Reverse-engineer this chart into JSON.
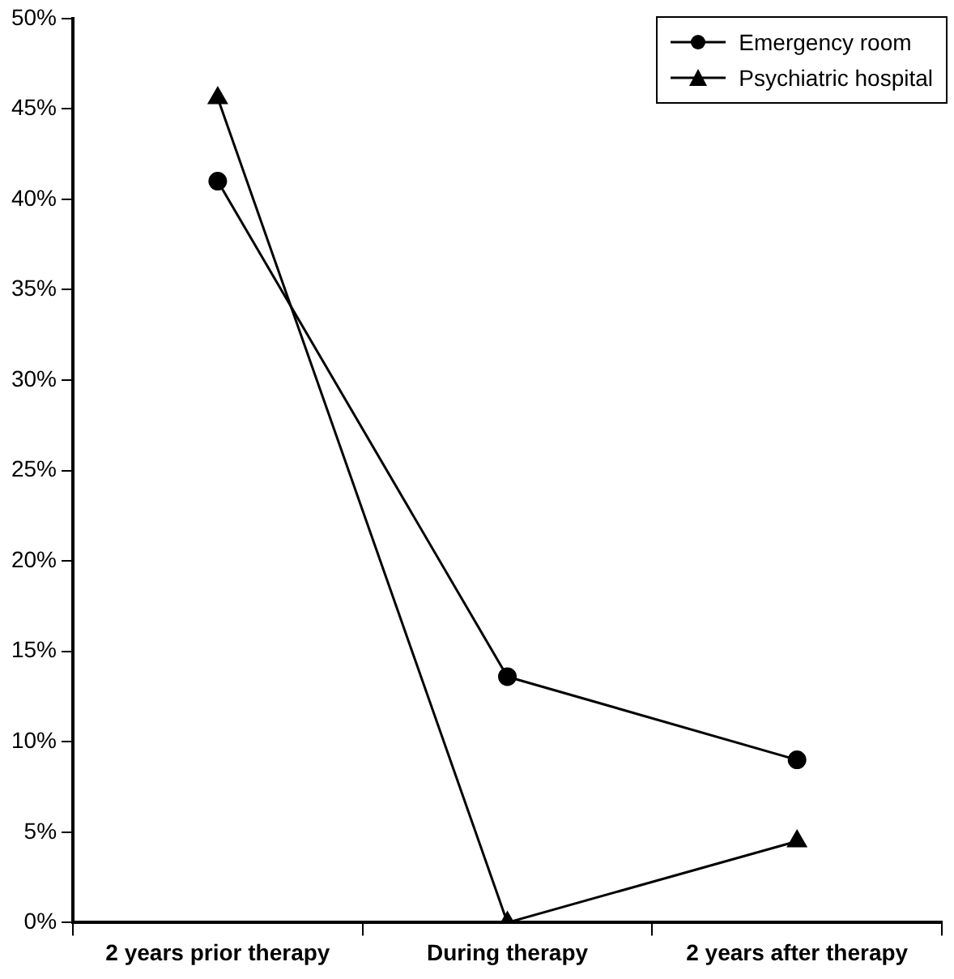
{
  "chart_data": {
    "type": "line",
    "categories": [
      "2 years prior therapy",
      "During therapy",
      "2 years after therapy"
    ],
    "series": [
      {
        "name": "Emergency room",
        "color": "#000000",
        "values": [
          41,
          13.6,
          9
        ],
        "marker": "circle"
      },
      {
        "name": "Psychiatric hospital",
        "color": "#000000",
        "values": [
          45.6,
          0,
          4.5
        ],
        "marker": "triangle"
      }
    ],
    "ylim": [
      0,
      50
    ],
    "yticks": [
      {
        "value": 0,
        "label": "0%"
      },
      {
        "value": 5,
        "label": "5%"
      },
      {
        "value": 10,
        "label": "10%"
      },
      {
        "value": 15,
        "label": "15%"
      },
      {
        "value": 20,
        "label": "20%"
      },
      {
        "value": 25,
        "label": "25%"
      },
      {
        "value": 30,
        "label": "30%"
      },
      {
        "value": 35,
        "label": "35%"
      },
      {
        "value": 40,
        "label": "40%"
      },
      {
        "value": 45,
        "label": "45%"
      },
      {
        "value": 50,
        "label": "50%"
      }
    ],
    "grid": false,
    "legend": "top right",
    "line_style": "solid"
  }
}
